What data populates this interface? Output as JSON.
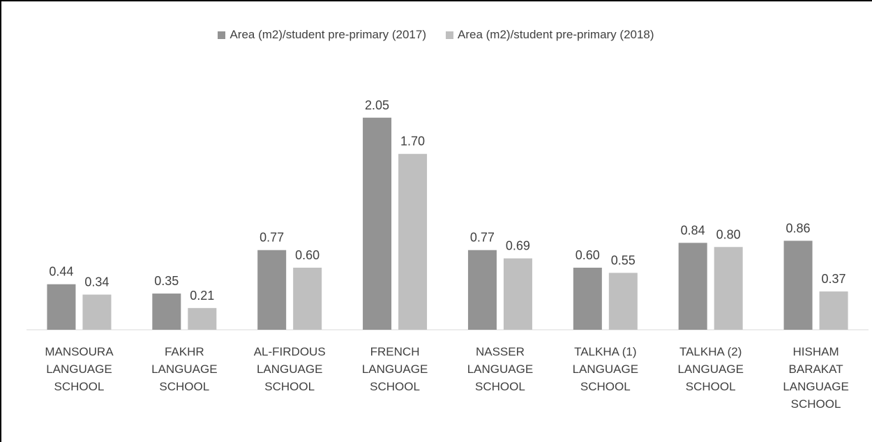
{
  "chart_data": {
    "type": "bar",
    "categories": [
      "MANSOURA LANGUAGE SCHOOL",
      "FAKHR LANGUAGE SCHOOL",
      "AL-FIRDOUS LANGUAGE SCHOOL",
      "FRENCH LANGUAGE SCHOOL",
      "NASSER LANGUAGE SCHOOL",
      "TALKHA (1) LANGUAGE SCHOOL",
      "TALKHA (2) LANGUAGE SCHOOL",
      "HISHAM BARAKAT LANGUAGE SCHOOL"
    ],
    "series": [
      {
        "name": "Area (m2)/student pre-primary (2017)",
        "color": "#939393",
        "values": [
          0.44,
          0.35,
          0.77,
          2.05,
          0.77,
          0.6,
          0.84,
          0.86
        ],
        "value_labels": [
          "0.44",
          "0.35",
          "0.77",
          "2.05",
          "0.77",
          "0.60",
          "0.84",
          "0.86"
        ]
      },
      {
        "name": "Area (m2)/student pre-primary (2018)",
        "color": "#bfbfbf",
        "values": [
          0.34,
          0.21,
          0.6,
          1.7,
          0.69,
          0.55,
          0.8,
          0.37
        ],
        "value_labels": [
          "0.34",
          "0.21",
          "0.60",
          "1.70",
          "0.69",
          "0.55",
          "0.80",
          "0.37"
        ]
      }
    ],
    "ylim": [
      0,
      2.5
    ],
    "legend": "top"
  }
}
